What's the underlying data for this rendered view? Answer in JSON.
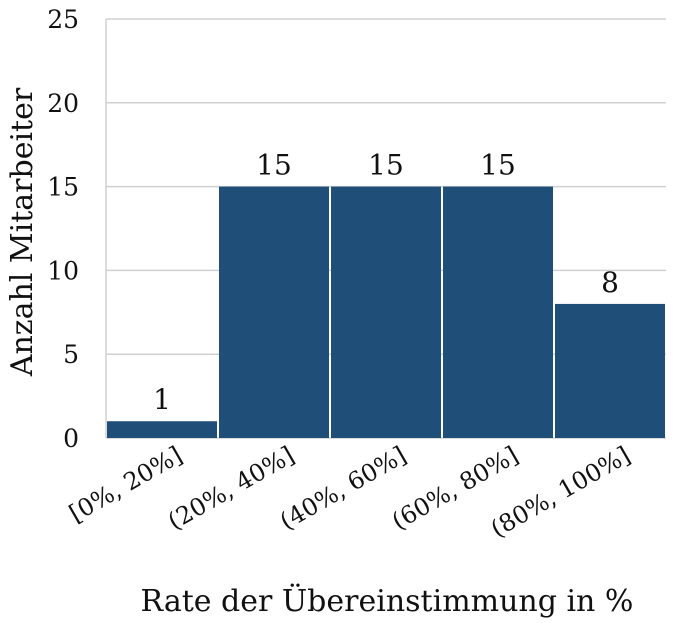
{
  "chart_data": {
    "type": "bar",
    "categories": [
      "[0%, 20%]",
      "(20%, 40%]",
      "(40%, 60%]",
      "(60%, 80%]",
      "(80%, 100%]"
    ],
    "values": [
      1,
      15,
      15,
      15,
      8
    ],
    "data_labels": [
      "1",
      "15",
      "15",
      "15",
      "8"
    ],
    "xlabel": "Rate der Übereinstimmung in %",
    "ylabel": "Anzahl Mitarbeiter",
    "ylim": [
      0,
      25
    ],
    "yticks": [
      "0",
      "5",
      "10",
      "15",
      "20",
      "25"
    ],
    "grid": "horizontal",
    "bar_color": "#1f4e79"
  }
}
